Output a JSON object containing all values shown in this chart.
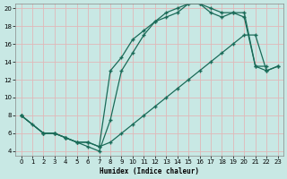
{
  "background_color": "#c8e8e4",
  "grid_color": "#e0b8b8",
  "line_color": "#1a6b58",
  "xlabel": "Humidex (Indice chaleur)",
  "xlim": [
    -0.5,
    23.5
  ],
  "ylim": [
    3.5,
    20.5
  ],
  "xticks": [
    0,
    1,
    2,
    3,
    4,
    5,
    6,
    7,
    8,
    9,
    10,
    11,
    12,
    13,
    14,
    15,
    16,
    17,
    18,
    19,
    20,
    21,
    22,
    23
  ],
  "yticks": [
    4,
    6,
    8,
    10,
    12,
    14,
    16,
    18,
    20
  ],
  "curve1_x": [
    0,
    1,
    2,
    3,
    4,
    5,
    6,
    7,
    8,
    9,
    10,
    11,
    12,
    13,
    14,
    15,
    16,
    17,
    18,
    19,
    20,
    21,
    22
  ],
  "curve1_y": [
    8,
    7,
    6,
    6,
    5.5,
    5,
    4.5,
    4,
    7.5,
    13,
    15,
    17,
    18.5,
    19.5,
    20,
    20.5,
    20.5,
    20,
    19.5,
    19.5,
    19.5,
    13.5,
    13.5
  ],
  "curve2_x": [
    0,
    2,
    3,
    4,
    5,
    6,
    7,
    8,
    9,
    10,
    11,
    12,
    13,
    14,
    15,
    16,
    17,
    18,
    19,
    20,
    21,
    22,
    23
  ],
  "curve2_y": [
    8,
    6,
    6,
    5.5,
    5,
    5,
    4.5,
    5,
    6,
    7,
    8,
    9,
    10,
    11,
    12,
    13,
    14,
    15,
    16,
    17,
    17,
    13,
    13.5
  ],
  "curve3_x": [
    0,
    2,
    3,
    4,
    5,
    6,
    7,
    8,
    9,
    10,
    11,
    12,
    13,
    14,
    15,
    16,
    17,
    18,
    19,
    20,
    21,
    22,
    23
  ],
  "curve3_y": [
    8,
    6,
    6,
    5.5,
    5,
    5,
    4.5,
    13,
    14.5,
    16.5,
    17.5,
    18.5,
    19,
    19.5,
    20.5,
    20.5,
    19.5,
    19,
    19.5,
    19,
    13.5,
    13,
    13.5
  ]
}
